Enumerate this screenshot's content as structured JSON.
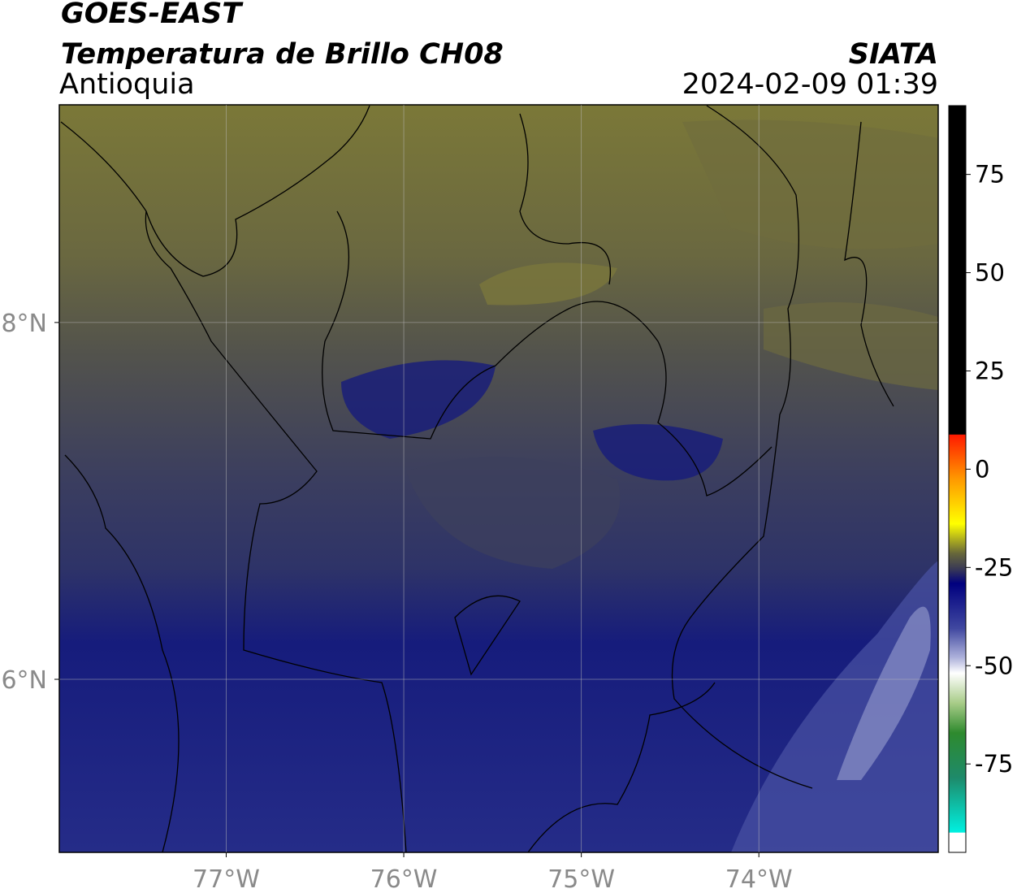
{
  "header": {
    "title": "GOES-EAST",
    "subtitle": "Temperatura de Brillo CH08",
    "region": "Antioquia",
    "source": "SIATA",
    "datetime": "2024-02-09 01:39"
  },
  "map": {
    "xlim": [
      -77.94,
      -72.99
    ],
    "ylim": [
      5.03,
      9.22
    ],
    "xticks": [
      {
        "value": -77,
        "label": "77°W"
      },
      {
        "value": -76,
        "label": "76°W"
      },
      {
        "value": -75,
        "label": "75°W"
      },
      {
        "value": -74,
        "label": "74°W"
      }
    ],
    "yticks": [
      {
        "value": 8,
        "label": "8°N"
      },
      {
        "value": 6,
        "label": "6°N"
      }
    ]
  },
  "colorbar": {
    "lim": [
      -97.5,
      92.5
    ],
    "ticks": [
      75,
      50,
      25,
      0,
      -25,
      -50,
      -75
    ]
  }
}
